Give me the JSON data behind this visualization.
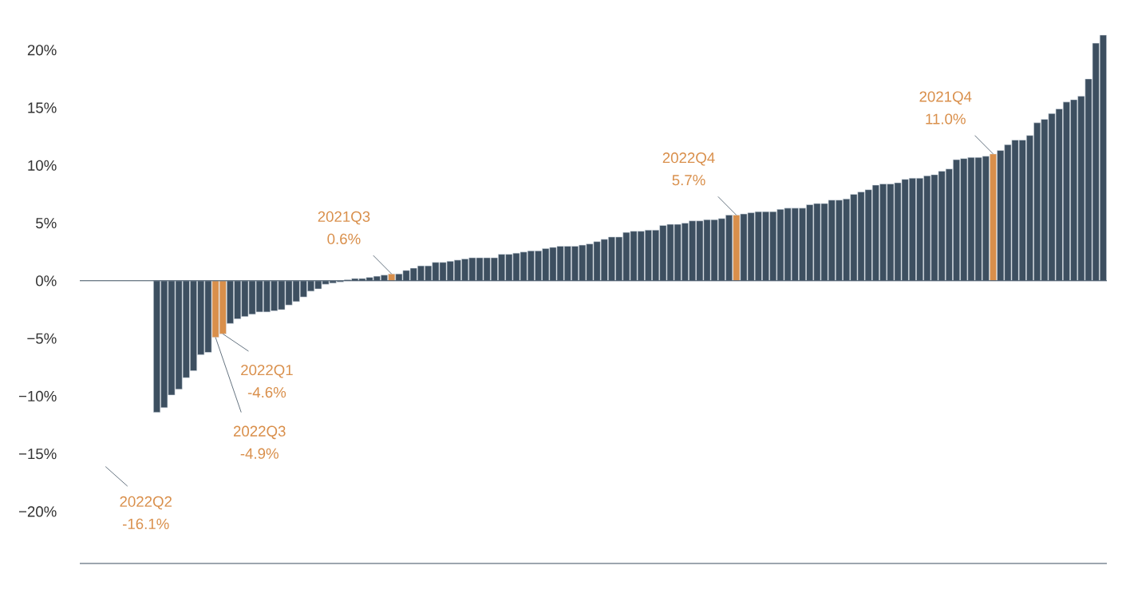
{
  "chart_data": {
    "type": "bar",
    "categories": [
      null,
      null,
      null,
      null,
      null,
      null,
      null,
      null,
      null,
      null,
      null,
      null,
      null,
      null,
      null,
      null,
      null,
      null,
      null,
      null,
      null,
      null,
      null,
      null,
      null,
      null,
      null,
      null,
      null,
      null,
      null,
      null,
      null,
      null,
      null,
      null,
      null,
      null,
      null,
      null,
      null,
      null,
      null,
      null,
      null,
      null,
      null,
      null,
      null,
      null,
      null,
      null,
      null,
      null,
      null,
      null,
      null,
      null,
      null,
      null,
      null,
      null,
      null,
      null,
      null,
      null,
      null,
      null,
      null,
      null,
      null,
      null,
      null,
      null,
      null,
      null,
      null,
      null,
      null,
      null,
      null,
      null,
      null,
      null,
      null,
      null,
      null,
      null,
      null,
      null,
      null,
      null,
      null,
      null,
      null,
      null,
      null,
      null,
      null,
      null,
      null,
      null,
      null,
      null,
      null,
      null,
      null,
      null,
      null,
      null,
      null,
      null,
      null,
      null,
      null,
      null,
      null,
      null,
      null,
      null,
      null,
      null,
      null,
      null,
      null,
      null,
      null,
      null,
      null,
      null,
      null,
      null,
      null,
      null,
      null,
      null,
      null,
      null,
      null,
      null
    ],
    "values": [
      null,
      null,
      null,
      null,
      null,
      null,
      null,
      null,
      null,
      null,
      -11.4,
      -11.0,
      -9.9,
      -9.4,
      -8.4,
      -7.8,
      -6.4,
      -6.2,
      -4.9,
      -4.6,
      -3.7,
      -3.3,
      -3.1,
      -2.9,
      -2.7,
      -2.7,
      -2.6,
      -2.5,
      -2.1,
      -1.8,
      -1.4,
      -0.9,
      -0.7,
      -0.3,
      -0.2,
      -0.1,
      0.1,
      0.2,
      0.2,
      0.3,
      0.4,
      0.5,
      0.6,
      0.6,
      0.9,
      1.1,
      1.3,
      1.3,
      1.6,
      1.6,
      1.7,
      1.8,
      1.9,
      2.0,
      2.0,
      2.0,
      2.0,
      2.3,
      2.3,
      2.4,
      2.5,
      2.6,
      2.6,
      2.8,
      2.9,
      3.0,
      3.0,
      3.0,
      3.1,
      3.2,
      3.4,
      3.6,
      3.8,
      3.8,
      4.2,
      4.3,
      4.3,
      4.4,
      4.4,
      4.8,
      4.9,
      4.9,
      5.0,
      5.2,
      5.2,
      5.3,
      5.3,
      5.4,
      5.7,
      5.7,
      5.8,
      5.9,
      6.0,
      6.0,
      6.0,
      6.2,
      6.3,
      6.3,
      6.3,
      6.6,
      6.7,
      6.7,
      7.0,
      7.0,
      7.1,
      7.5,
      7.7,
      7.9,
      8.3,
      8.4,
      8.4,
      8.5,
      8.8,
      8.9,
      8.9,
      9.1,
      9.2,
      9.5,
      9.7,
      10.5,
      10.6,
      10.7,
      10.7,
      10.8,
      11.0,
      11.3,
      11.8,
      12.2,
      12.2,
      12.6,
      13.7,
      14.0,
      14.5,
      14.9,
      15.5,
      15.7,
      16.0,
      17.5,
      20.6,
      21.3
    ],
    "colors": [
      null,
      null,
      null,
      null,
      null,
      null,
      null,
      null,
      null,
      null,
      "#3d4f60",
      "#3d4f60",
      "#3d4f60",
      "#3d4f60",
      "#3d4f60",
      "#3d4f60",
      "#3d4f60",
      "#3d4f60",
      "#d98f4b",
      "#d98f4b",
      "#3d4f60",
      "#3d4f60",
      "#3d4f60",
      "#3d4f60",
      "#3d4f60",
      "#3d4f60",
      "#3d4f60",
      "#3d4f60",
      "#3d4f60",
      "#3d4f60",
      "#3d4f60",
      "#3d4f60",
      "#3d4f60",
      "#3d4f60",
      "#3d4f60",
      "#3d4f60",
      "#3d4f60",
      "#3d4f60",
      "#3d4f60",
      "#3d4f60",
      "#3d4f60",
      "#3d4f60",
      "#d98f4b",
      "#3d4f60",
      "#3d4f60",
      "#3d4f60",
      "#3d4f60",
      "#3d4f60",
      "#3d4f60",
      "#3d4f60",
      "#3d4f60",
      "#3d4f60",
      "#3d4f60",
      "#3d4f60",
      "#3d4f60",
      "#3d4f60",
      "#3d4f60",
      "#3d4f60",
      "#3d4f60",
      "#3d4f60",
      "#3d4f60",
      "#3d4f60",
      "#3d4f60",
      "#3d4f60",
      "#3d4f60",
      "#3d4f60",
      "#3d4f60",
      "#3d4f60",
      "#3d4f60",
      "#3d4f60",
      "#3d4f60",
      "#3d4f60",
      "#3d4f60",
      "#3d4f60",
      "#3d4f60",
      "#3d4f60",
      "#3d4f60",
      "#3d4f60",
      "#3d4f60",
      "#3d4f60",
      "#3d4f60",
      "#3d4f60",
      "#3d4f60",
      "#3d4f60",
      "#3d4f60",
      "#3d4f60",
      "#3d4f60",
      "#3d4f60",
      "#3d4f60",
      "#d98f4b",
      "#3d4f60",
      "#3d4f60",
      "#3d4f60",
      "#3d4f60",
      "#3d4f60",
      "#3d4f60",
      "#3d4f60",
      "#3d4f60",
      "#3d4f60",
      "#3d4f60",
      "#3d4f60",
      "#3d4f60",
      "#3d4f60",
      "#3d4f60",
      "#3d4f60",
      "#3d4f60",
      "#3d4f60",
      "#3d4f60",
      "#3d4f60",
      "#3d4f60",
      "#3d4f60",
      "#3d4f60",
      "#3d4f60",
      "#3d4f60",
      "#3d4f60",
      "#3d4f60",
      "#3d4f60",
      "#3d4f60",
      "#3d4f60",
      "#3d4f60",
      "#3d4f60",
      "#3d4f60",
      "#3d4f60",
      "#3d4f60",
      "#d98f4b",
      "#3d4f60",
      "#3d4f60",
      "#3d4f60",
      "#3d4f60",
      "#3d4f60",
      "#3d4f60",
      "#3d4f60",
      "#3d4f60",
      "#3d4f60",
      "#3d4f60",
      "#3d4f60",
      "#3d4f60",
      "#3d4f60",
      "#3d4f60",
      "#3d4f60"
    ],
    "ylim": [
      -24.5,
      21.3
    ],
    "yticks": [
      {
        "value": -20,
        "label": "−20%"
      },
      {
        "value": -15,
        "label": "−15%"
      },
      {
        "value": -10,
        "label": "−10%"
      },
      {
        "value": -5,
        "label": "−5%"
      },
      {
        "value": 0,
        "label": "0%"
      },
      {
        "value": 5,
        "label": "5%"
      },
      {
        "value": 10,
        "label": "10%"
      },
      {
        "value": 15,
        "label": "15%"
      },
      {
        "value": 20,
        "label": "20%"
      }
    ],
    "annotations": [
      "2022Q3 -4.9%",
      "2022Q1 -4.6%",
      "2021Q3 0.6%",
      "2022Q4 5.7%",
      "2021Q4 11.0%",
      "2022Q2 -16.1%"
    ]
  }
}
